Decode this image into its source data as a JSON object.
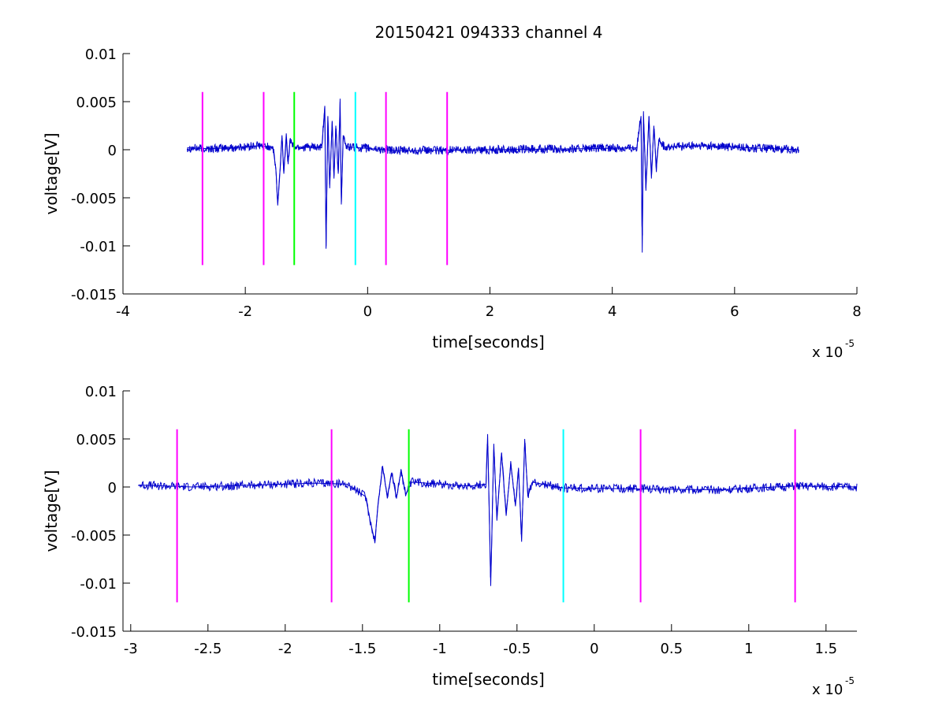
{
  "title": "20150421 094333 channel 4",
  "chart_data": [
    {
      "type": "line",
      "title": "20150421 094333 channel 4",
      "xlabel": "time[seconds]",
      "ylabel": "voltage[V]",
      "x_multiplier_label": "x 10",
      "x_multiplier_exp": "-5",
      "xlim": [
        -4,
        8
      ],
      "ylim": [
        -0.015,
        0.01
      ],
      "xticks": [
        -4,
        -2,
        0,
        2,
        4,
        6,
        8
      ],
      "xtick_labels": [
        "-4",
        "-2",
        "0",
        "2",
        "4",
        "6",
        "8"
      ],
      "yticks": [
        0.01,
        0.005,
        0,
        -0.005,
        -0.01,
        -0.015
      ],
      "ytick_labels": [
        "0.01",
        "0.005",
        "0",
        "-0.005",
        "-0.01",
        "-0.015"
      ],
      "grid": false,
      "signal_color": "#0000cc",
      "signal_range": [
        -2.95,
        7.05
      ],
      "signal_points": [
        [
          -2.95,
          0.0002
        ],
        [
          -2.6,
          0.0001
        ],
        [
          -2.2,
          0.0002
        ],
        [
          -1.8,
          0.0004
        ],
        [
          -1.55,
          0.0003
        ],
        [
          -1.5,
          -0.002
        ],
        [
          -1.47,
          -0.0058
        ],
        [
          -1.44,
          -0.003
        ],
        [
          -1.4,
          0.0015
        ],
        [
          -1.37,
          -0.0025
        ],
        [
          -1.33,
          0.0017
        ],
        [
          -1.3,
          -0.0015
        ],
        [
          -1.27,
          0.001
        ],
        [
          -1.2,
          0.0003
        ],
        [
          -0.75,
          0.0002
        ],
        [
          -0.7,
          0.0045
        ],
        [
          -0.68,
          -0.0103
        ],
        [
          -0.65,
          0.0035
        ],
        [
          -0.62,
          -0.004
        ],
        [
          -0.58,
          0.003
        ],
        [
          -0.55,
          -0.003
        ],
        [
          -0.52,
          0.0025
        ],
        [
          -0.48,
          -0.0025
        ],
        [
          -0.45,
          0.005
        ],
        [
          -0.43,
          -0.0057
        ],
        [
          -0.4,
          0.0015
        ],
        [
          -0.35,
          0.0003
        ],
        [
          0.5,
          -0.0001
        ],
        [
          2.0,
          0.0
        ],
        [
          3.5,
          0.0001
        ],
        [
          4.4,
          0.0002
        ],
        [
          4.47,
          0.0035
        ],
        [
          4.49,
          -0.0107
        ],
        [
          4.51,
          0.004
        ],
        [
          4.55,
          -0.004
        ],
        [
          4.6,
          0.0035
        ],
        [
          4.64,
          -0.003
        ],
        [
          4.68,
          0.0025
        ],
        [
          4.72,
          -0.002
        ],
        [
          4.76,
          0.001
        ],
        [
          4.85,
          0.0003
        ],
        [
          5.5,
          0.0004
        ],
        [
          6.2,
          0.0002
        ],
        [
          7.05,
          0.0
        ]
      ],
      "markers": [
        {
          "x": -2.7,
          "color": "#ff00ff"
        },
        {
          "x": -1.7,
          "color": "#ff00ff"
        },
        {
          "x": -1.2,
          "color": "#00ff00"
        },
        {
          "x": -0.2,
          "color": "#00ffff"
        },
        {
          "x": 0.3,
          "color": "#ff00ff"
        },
        {
          "x": 1.3,
          "color": "#ff00ff"
        }
      ],
      "marker_y_range": [
        -0.012,
        0.006
      ]
    },
    {
      "type": "line",
      "title": "",
      "xlabel": "time[seconds]",
      "ylabel": "voltage[V]",
      "x_multiplier_label": "x 10",
      "x_multiplier_exp": "-5",
      "xlim": [
        -3.05,
        1.7
      ],
      "ylim": [
        -0.015,
        0.01
      ],
      "xticks": [
        -3,
        -2.5,
        -2,
        -1.5,
        -1,
        -0.5,
        0,
        0.5,
        1,
        1.5
      ],
      "xtick_labels": [
        "-3",
        "-2.5",
        "-2",
        "-1.5",
        "-1",
        "-0.5",
        "0",
        "0.5",
        "1",
        "1.5"
      ],
      "yticks": [
        0.01,
        0.005,
        0,
        -0.005,
        -0.01,
        -0.015
      ],
      "ytick_labels": [
        "0.01",
        "0.005",
        "0",
        "-0.005",
        "-0.01",
        "-0.015"
      ],
      "grid": false,
      "signal_color": "#0000cc",
      "signal_range": [
        -2.95,
        1.7
      ],
      "signal_points": [
        [
          -2.95,
          0.0002
        ],
        [
          -2.6,
          0.0
        ],
        [
          -2.2,
          0.0002
        ],
        [
          -1.8,
          0.0004
        ],
        [
          -1.6,
          0.0003
        ],
        [
          -1.48,
          -0.001
        ],
        [
          -1.45,
          -0.0035
        ],
        [
          -1.42,
          -0.0057
        ],
        [
          -1.4,
          -0.002
        ],
        [
          -1.37,
          0.0022
        ],
        [
          -1.34,
          -0.001
        ],
        [
          -1.31,
          0.0015
        ],
        [
          -1.28,
          -0.0012
        ],
        [
          -1.25,
          0.0018
        ],
        [
          -1.22,
          -0.0008
        ],
        [
          -1.18,
          0.0005
        ],
        [
          -0.8,
          0.0001
        ],
        [
          -0.7,
          0.0003
        ],
        [
          -0.69,
          0.0055
        ],
        [
          -0.67,
          -0.0103
        ],
        [
          -0.65,
          0.0045
        ],
        [
          -0.63,
          -0.0035
        ],
        [
          -0.6,
          0.0035
        ],
        [
          -0.57,
          -0.003
        ],
        [
          -0.54,
          0.0025
        ],
        [
          -0.51,
          -0.002
        ],
        [
          -0.49,
          0.002
        ],
        [
          -0.47,
          -0.0057
        ],
        [
          -0.45,
          0.005
        ],
        [
          -0.43,
          -0.001
        ],
        [
          -0.4,
          0.0005
        ],
        [
          -0.2,
          -0.0001
        ],
        [
          0.3,
          -0.0002
        ],
        [
          0.8,
          -0.0003
        ],
        [
          1.3,
          0.0001
        ],
        [
          1.7,
          0.0
        ]
      ],
      "markers": [
        {
          "x": -2.7,
          "color": "#ff00ff"
        },
        {
          "x": -1.7,
          "color": "#ff00ff"
        },
        {
          "x": -1.2,
          "color": "#00ff00"
        },
        {
          "x": -0.2,
          "color": "#00ffff"
        },
        {
          "x": 0.3,
          "color": "#ff00ff"
        },
        {
          "x": 1.3,
          "color": "#ff00ff"
        }
      ],
      "marker_y_range": [
        -0.012,
        0.006
      ]
    }
  ]
}
